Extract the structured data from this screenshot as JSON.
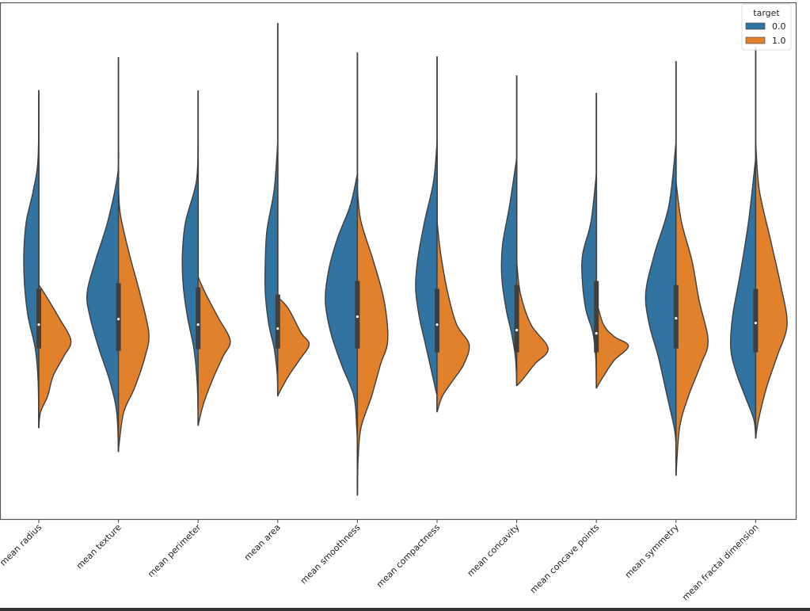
{
  "chart_data": {
    "type": "violin",
    "split": true,
    "title": "",
    "xlabel": "",
    "ylabel": "",
    "ylim": [
      -5.1,
      7.9
    ],
    "y_ticks_shown": false,
    "grid": false,
    "legend": {
      "title": "target",
      "placement": "top-right",
      "entries": [
        "0.0",
        "1.0"
      ]
    },
    "colors": {
      "0.0": "#3274a1",
      "1.0": "#e1812c",
      "outline": "#3f3f3f"
    },
    "categories": [
      "mean radius",
      "mean texture",
      "mean perimeter",
      "mean area",
      "mean smoothness",
      "mean compactness",
      "mean concavity",
      "mean concave points",
      "mean symmetry",
      "mean fractal dimension"
    ],
    "violins": [
      {
        "max": 5.7,
        "min": -2.8,
        "q1": -0.8,
        "median": -0.2,
        "q3": 0.7,
        "density_0": [
          [
            5.7,
            0
          ],
          [
            4.0,
            0.02
          ],
          [
            3.2,
            0.15
          ],
          [
            2.4,
            0.35
          ],
          [
            1.6,
            0.42
          ],
          [
            0.8,
            0.4
          ],
          [
            0,
            0.3
          ],
          [
            -0.8,
            0.1
          ],
          [
            -1.6,
            0.02
          ],
          [
            -2.8,
            0
          ]
        ],
        "density_1": [
          [
            0.8,
            0
          ],
          [
            0.6,
            0.15
          ],
          [
            0,
            0.55
          ],
          [
            -0.6,
            0.9
          ],
          [
            -1.0,
            0.7
          ],
          [
            -1.5,
            0.4
          ],
          [
            -2.0,
            0.25
          ],
          [
            -2.4,
            0.05
          ],
          [
            -2.8,
            0
          ]
        ]
      },
      {
        "max": 6.54,
        "min": -3.4,
        "q1": -0.86,
        "median": -0.06,
        "q3": 0.84,
        "density_0": [
          [
            4.4,
            0
          ],
          [
            3.6,
            0.02
          ],
          [
            2.4,
            0.3
          ],
          [
            1.4,
            0.65
          ],
          [
            0.6,
            0.88
          ],
          [
            0,
            0.8
          ],
          [
            -0.8,
            0.55
          ],
          [
            -1.6,
            0.25
          ],
          [
            -2.4,
            0.05
          ],
          [
            -3.4,
            0
          ]
        ],
        "density_1": [
          [
            3.4,
            0
          ],
          [
            2.6,
            0.05
          ],
          [
            1.6,
            0.3
          ],
          [
            0.6,
            0.6
          ],
          [
            -0.4,
            0.85
          ],
          [
            -1.0,
            0.75
          ],
          [
            -1.8,
            0.45
          ],
          [
            -2.4,
            0.15
          ],
          [
            -3.2,
            0.02
          ],
          [
            -3.4,
            0
          ]
        ]
      },
      {
        "max": 5.7,
        "min": -2.74,
        "q1": -0.82,
        "median": -0.2,
        "q3": 0.74,
        "density_0": [
          [
            4.4,
            0
          ],
          [
            3.4,
            0.05
          ],
          [
            2.4,
            0.35
          ],
          [
            1.6,
            0.44
          ],
          [
            0.8,
            0.42
          ],
          [
            0,
            0.3
          ],
          [
            -0.8,
            0.12
          ],
          [
            -1.6,
            0.03
          ],
          [
            -2.4,
            0
          ]
        ],
        "density_1": [
          [
            1.0,
            0
          ],
          [
            0.6,
            0.2
          ],
          [
            0,
            0.55
          ],
          [
            -0.6,
            0.9
          ],
          [
            -1.0,
            0.7
          ],
          [
            -1.6,
            0.4
          ],
          [
            -2.2,
            0.15
          ],
          [
            -2.74,
            0
          ]
        ]
      },
      {
        "max": 7.4,
        "min": -2.0,
        "q1": -0.8,
        "median": -0.3,
        "q3": 0.56,
        "density_0": [
          [
            4.4,
            0
          ],
          [
            3.2,
            0.1
          ],
          [
            2.2,
            0.3
          ],
          [
            1.4,
            0.35
          ],
          [
            0.6,
            0.35
          ],
          [
            -0.2,
            0.25
          ],
          [
            -0.8,
            0.1
          ],
          [
            -1.4,
            0.02
          ],
          [
            -1.8,
            0
          ]
        ],
        "density_1": [
          [
            0.5,
            0
          ],
          [
            0.2,
            0.3
          ],
          [
            -0.4,
            0.65
          ],
          [
            -0.7,
            0.88
          ],
          [
            -1.1,
            0.6
          ],
          [
            -1.5,
            0.3
          ],
          [
            -1.9,
            0.05
          ],
          [
            -2.0,
            0
          ]
        ]
      },
      {
        "max": 6.66,
        "min": -4.5,
        "q1": -0.8,
        "median": 0.0,
        "q3": 0.9,
        "density_0": [
          [
            3.6,
            0
          ],
          [
            2.8,
            0.2
          ],
          [
            2.0,
            0.55
          ],
          [
            1.2,
            0.8
          ],
          [
            0.4,
            0.9
          ],
          [
            -0.4,
            0.75
          ],
          [
            -1.2,
            0.45
          ],
          [
            -2.0,
            0.1
          ],
          [
            -2.8,
            0.02
          ],
          [
            -3.2,
            0
          ]
        ],
        "density_1": [
          [
            3.2,
            0
          ],
          [
            2.4,
            0.1
          ],
          [
            1.4,
            0.45
          ],
          [
            0.4,
            0.75
          ],
          [
            -0.6,
            0.85
          ],
          [
            -1.2,
            0.65
          ],
          [
            -2.0,
            0.4
          ],
          [
            -2.8,
            0.1
          ],
          [
            -3.6,
            0.02
          ],
          [
            -4.5,
            0
          ]
        ]
      },
      {
        "max": 6.56,
        "min": -2.4,
        "q1": -0.9,
        "median": -0.2,
        "q3": 0.7,
        "density_0": [
          [
            4.4,
            0
          ],
          [
            3.4,
            0.1
          ],
          [
            2.4,
            0.35
          ],
          [
            1.4,
            0.55
          ],
          [
            0.7,
            0.6
          ],
          [
            0,
            0.5
          ],
          [
            -0.8,
            0.3
          ],
          [
            -1.6,
            0.1
          ],
          [
            -2.0,
            0
          ]
        ],
        "density_1": [
          [
            2.4,
            0
          ],
          [
            1.6,
            0.1
          ],
          [
            0.6,
            0.3
          ],
          [
            -0.2,
            0.55
          ],
          [
            -0.7,
            0.9
          ],
          [
            -1.2,
            0.75
          ],
          [
            -1.6,
            0.45
          ],
          [
            -2.0,
            0.15
          ],
          [
            -2.4,
            0
          ]
        ]
      },
      {
        "max": 6.08,
        "min": -1.74,
        "q1": -0.9,
        "median": -0.34,
        "q3": 0.8,
        "density_0": [
          [
            4.0,
            0
          ],
          [
            2.8,
            0.2
          ],
          [
            1.8,
            0.4
          ],
          [
            1.0,
            0.42
          ],
          [
            0.2,
            0.3
          ],
          [
            -0.4,
            0.15
          ],
          [
            -1.0,
            0.04
          ],
          [
            -1.6,
            0
          ]
        ],
        "density_1": [
          [
            1.4,
            0
          ],
          [
            0.6,
            0.1
          ],
          [
            -0.2,
            0.4
          ],
          [
            -0.8,
            0.88
          ],
          [
            -1.2,
            0.5
          ],
          [
            -1.6,
            0.15
          ],
          [
            -1.74,
            0
          ]
        ]
      },
      {
        "max": 5.64,
        "min": -1.8,
        "q1": -0.9,
        "median": -0.42,
        "q3": 0.9,
        "density_0": [
          [
            3.6,
            0
          ],
          [
            2.4,
            0.15
          ],
          [
            1.6,
            0.38
          ],
          [
            1.0,
            0.4
          ],
          [
            0.2,
            0.3
          ],
          [
            -0.4,
            0.1
          ],
          [
            -1.0,
            0.02
          ],
          [
            -1.6,
            0
          ]
        ],
        "density_1": [
          [
            0.4,
            0
          ],
          [
            -0.2,
            0.2
          ],
          [
            -0.5,
            0.5
          ],
          [
            -0.74,
            0.9
          ],
          [
            -1.1,
            0.5
          ],
          [
            -1.5,
            0.2
          ],
          [
            -1.8,
            0
          ]
        ]
      },
      {
        "max": 6.44,
        "min": -4.0,
        "q1": -0.8,
        "median": -0.04,
        "q3": 0.8,
        "density_0": [
          [
            4.4,
            0
          ],
          [
            2.8,
            0.2
          ],
          [
            1.6,
            0.6
          ],
          [
            0.6,
            0.85
          ],
          [
            -0.2,
            0.75
          ],
          [
            -1.0,
            0.5
          ],
          [
            -2.0,
            0.25
          ],
          [
            -2.8,
            0.05
          ],
          [
            -3.2,
            0
          ]
        ],
        "density_1": [
          [
            3.4,
            0
          ],
          [
            2.4,
            0.15
          ],
          [
            1.4,
            0.45
          ],
          [
            0.4,
            0.65
          ],
          [
            -0.6,
            0.9
          ],
          [
            -1.2,
            0.7
          ],
          [
            -2.0,
            0.35
          ],
          [
            -2.8,
            0.1
          ],
          [
            -4.0,
            0
          ]
        ]
      },
      {
        "max": 6.8,
        "min": -3.06,
        "q1": -0.9,
        "median": -0.16,
        "q3": 0.7,
        "density_0": [
          [
            4.0,
            0
          ],
          [
            2.4,
            0.2
          ],
          [
            1.0,
            0.45
          ],
          [
            0,
            0.65
          ],
          [
            -0.8,
            0.7
          ],
          [
            -1.4,
            0.55
          ],
          [
            -2.0,
            0.3
          ],
          [
            -2.6,
            0.05
          ],
          [
            -3.06,
            0
          ]
        ],
        "density_1": [
          [
            4.4,
            0
          ],
          [
            3.2,
            0.1
          ],
          [
            2.0,
            0.4
          ],
          [
            0.8,
            0.7
          ],
          [
            -0.2,
            0.88
          ],
          [
            -1.0,
            0.6
          ],
          [
            -1.8,
            0.3
          ],
          [
            -2.6,
            0.08
          ],
          [
            -3.06,
            0
          ]
        ]
      }
    ]
  }
}
